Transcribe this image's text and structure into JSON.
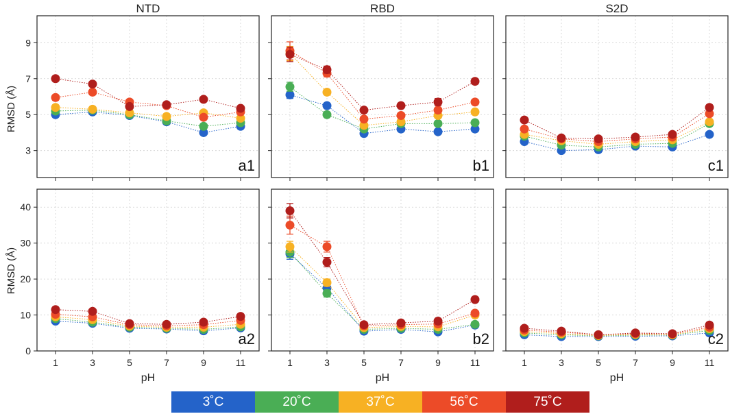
{
  "chart_data": {
    "type": "scatter",
    "x": [
      1,
      3,
      5,
      7,
      9,
      11
    ],
    "xlabel": "pH",
    "xticks": [
      "1",
      "3",
      "5",
      "7",
      "9",
      "11"
    ],
    "xlim": [
      0,
      12
    ],
    "ylabel": "RMSD (Å)",
    "grid": true,
    "columns": [
      "NTD",
      "RBD",
      "S2D"
    ],
    "rows": [
      {
        "ylim": [
          1.5,
          10.5
        ],
        "yticks": [
          3,
          5,
          7,
          9
        ]
      },
      {
        "ylim": [
          0,
          45
        ],
        "yticks": [
          0,
          10,
          20,
          30,
          40
        ]
      }
    ],
    "legend": {
      "placement": "bottom-center",
      "entries": [
        {
          "name": "3˚C",
          "color": "#2463c9"
        },
        {
          "name": "20˚C",
          "color": "#4aae55"
        },
        {
          "name": "37˚C",
          "color": "#f7b123"
        },
        {
          "name": "56˚C",
          "color": "#ec4b28"
        },
        {
          "name": "75˚C",
          "color": "#b01e1c"
        }
      ]
    },
    "panels": [
      {
        "label": "a1",
        "row": 0,
        "col": 0,
        "series": [
          {
            "name": "3˚C",
            "values": [
              5.0,
              5.15,
              4.95,
              4.6,
              4.0,
              4.35
            ],
            "errors": [
              0.12,
              0.1,
              0.1,
              0.1,
              0.1,
              0.1
            ]
          },
          {
            "name": "20˚C",
            "values": [
              5.2,
              5.25,
              5.0,
              4.65,
              4.35,
              4.55
            ],
            "errors": [
              0.12,
              0.1,
              0.1,
              0.1,
              0.1,
              0.1
            ]
          },
          {
            "name": "37˚C",
            "values": [
              5.4,
              5.3,
              5.1,
              4.9,
              5.1,
              4.8
            ],
            "errors": [
              0.12,
              0.1,
              0.1,
              0.1,
              0.1,
              0.1
            ]
          },
          {
            "name": "56˚C",
            "values": [
              5.95,
              6.25,
              5.7,
              5.5,
              4.85,
              5.15
            ],
            "errors": [
              0.15,
              0.15,
              0.1,
              0.1,
              0.1,
              0.1
            ]
          },
          {
            "name": "75˚C",
            "values": [
              7.0,
              6.7,
              5.45,
              5.55,
              5.85,
              5.35
            ],
            "errors": [
              0.12,
              0.12,
              0.12,
              0.1,
              0.1,
              0.1
            ]
          }
        ]
      },
      {
        "label": "b1",
        "row": 0,
        "col": 1,
        "series": [
          {
            "name": "3˚C",
            "values": [
              6.1,
              5.5,
              3.95,
              4.2,
              4.05,
              4.2
            ],
            "errors": [
              0.2,
              0.12,
              0.1,
              0.1,
              0.1,
              0.1
            ]
          },
          {
            "name": "20˚C",
            "values": [
              6.55,
              5.0,
              4.2,
              4.5,
              4.5,
              4.55
            ],
            "errors": [
              0.25,
              0.12,
              0.1,
              0.1,
              0.1,
              0.1
            ]
          },
          {
            "name": "37˚C",
            "values": [
              8.4,
              6.25,
              4.4,
              4.6,
              4.95,
              5.15
            ],
            "errors": [
              0.4,
              0.15,
              0.1,
              0.1,
              0.1,
              0.1
            ]
          },
          {
            "name": "56˚C",
            "values": [
              8.55,
              7.3,
              4.75,
              4.95,
              5.25,
              5.7
            ],
            "errors": [
              0.5,
              0.2,
              0.1,
              0.1,
              0.12,
              0.1
            ]
          },
          {
            "name": "75˚C",
            "values": [
              8.35,
              7.5,
              5.25,
              5.5,
              5.7,
              6.85
            ],
            "errors": [
              0.4,
              0.2,
              0.1,
              0.1,
              0.2,
              0.15
            ]
          }
        ]
      },
      {
        "label": "c1",
        "row": 0,
        "col": 2,
        "series": [
          {
            "name": "3˚C",
            "values": [
              3.5,
              3.0,
              3.05,
              3.25,
              3.2,
              3.9
            ],
            "errors": [
              0.1,
              0.1,
              0.1,
              0.1,
              0.1,
              0.1
            ]
          },
          {
            "name": "20˚C",
            "values": [
              3.8,
              3.3,
              3.2,
              3.35,
              3.4,
              4.5
            ],
            "errors": [
              0.1,
              0.1,
              0.1,
              0.1,
              0.1,
              0.1
            ]
          },
          {
            "name": "37˚C",
            "values": [
              3.9,
              3.55,
              3.35,
              3.5,
              3.6,
              4.6
            ],
            "errors": [
              0.1,
              0.1,
              0.1,
              0.1,
              0.1,
              0.1
            ]
          },
          {
            "name": "56˚C",
            "values": [
              4.2,
              3.65,
              3.5,
              3.65,
              3.75,
              5.05
            ],
            "errors": [
              0.1,
              0.1,
              0.1,
              0.1,
              0.1,
              0.1
            ]
          },
          {
            "name": "75˚C",
            "values": [
              4.7,
              3.7,
              3.65,
              3.75,
              3.9,
              5.4
            ],
            "errors": [
              0.1,
              0.1,
              0.1,
              0.1,
              0.1,
              0.12
            ]
          }
        ]
      },
      {
        "label": "a2",
        "row": 1,
        "col": 0,
        "series": [
          {
            "name": "3˚C",
            "values": [
              8.3,
              7.7,
              6.3,
              6.1,
              5.6,
              6.4
            ],
            "errors": [
              0.5,
              0.5,
              0.4,
              0.4,
              0.4,
              0.4
            ]
          },
          {
            "name": "20˚C",
            "values": [
              9.0,
              8.0,
              6.6,
              6.3,
              6.0,
              6.7
            ],
            "errors": [
              0.5,
              0.5,
              0.4,
              0.4,
              0.4,
              0.4
            ]
          },
          {
            "name": "37˚C",
            "values": [
              9.5,
              8.7,
              6.9,
              6.6,
              6.6,
              7.4
            ],
            "errors": [
              0.5,
              0.5,
              0.4,
              0.4,
              0.4,
              0.4
            ]
          },
          {
            "name": "56˚C",
            "values": [
              10.2,
              9.5,
              7.3,
              7.0,
              7.3,
              8.5
            ],
            "errors": [
              0.6,
              0.5,
              0.4,
              0.4,
              0.4,
              0.5
            ]
          },
          {
            "name": "75˚C",
            "values": [
              11.5,
              11.0,
              7.6,
              7.4,
              8.0,
              9.6
            ],
            "errors": [
              0.7,
              0.6,
              0.4,
              0.4,
              0.5,
              0.6
            ]
          }
        ]
      },
      {
        "label": "b2",
        "row": 1,
        "col": 1,
        "series": [
          {
            "name": "3˚C",
            "values": [
              27.0,
              17.5,
              5.5,
              6.0,
              5.3,
              7.2
            ],
            "errors": [
              1.5,
              1.0,
              0.4,
              0.4,
              0.4,
              0.5
            ]
          },
          {
            "name": "20˚C",
            "values": [
              27.5,
              16.0,
              6.0,
              6.3,
              6.0,
              7.4
            ],
            "errors": [
              1.5,
              1.0,
              0.4,
              0.4,
              0.4,
              0.5
            ]
          },
          {
            "name": "37˚C",
            "values": [
              29.0,
              19.0,
              6.5,
              6.8,
              6.7,
              10.0
            ],
            "errors": [
              1.5,
              1.0,
              0.4,
              0.4,
              0.4,
              0.6
            ]
          },
          {
            "name": "56˚C",
            "values": [
              35.0,
              29.0,
              7.0,
              7.3,
              7.5,
              10.5
            ],
            "errors": [
              2.5,
              1.5,
              0.4,
              0.4,
              0.5,
              0.7
            ]
          },
          {
            "name": "75˚C",
            "values": [
              39.0,
              24.7,
              7.3,
              7.8,
              8.3,
              14.3
            ],
            "errors": [
              2.0,
              1.3,
              0.4,
              0.5,
              0.5,
              0.7
            ]
          }
        ]
      },
      {
        "label": "c2",
        "row": 1,
        "col": 2,
        "series": [
          {
            "name": "3˚C",
            "values": [
              4.5,
              4.0,
              4.0,
              4.1,
              4.2,
              5.0
            ],
            "errors": [
              0.3,
              0.3,
              0.3,
              0.3,
              0.3,
              0.3
            ]
          },
          {
            "name": "20˚C",
            "values": [
              5.0,
              4.5,
              4.2,
              4.4,
              4.4,
              5.7
            ],
            "errors": [
              0.3,
              0.3,
              0.3,
              0.3,
              0.3,
              0.3
            ]
          },
          {
            "name": "37˚C",
            "values": [
              5.4,
              4.8,
              4.3,
              4.6,
              4.5,
              6.2
            ],
            "errors": [
              0.3,
              0.3,
              0.3,
              0.3,
              0.3,
              0.3
            ]
          },
          {
            "name": "56˚C",
            "values": [
              5.8,
              5.2,
              4.5,
              4.8,
              4.7,
              6.6
            ],
            "errors": [
              0.3,
              0.3,
              0.3,
              0.3,
              0.3,
              0.4
            ]
          },
          {
            "name": "75˚C",
            "values": [
              6.3,
              5.5,
              4.5,
              5.0,
              4.8,
              7.2
            ],
            "errors": [
              0.4,
              0.3,
              0.3,
              0.3,
              0.3,
              0.4
            ]
          }
        ]
      }
    ]
  }
}
